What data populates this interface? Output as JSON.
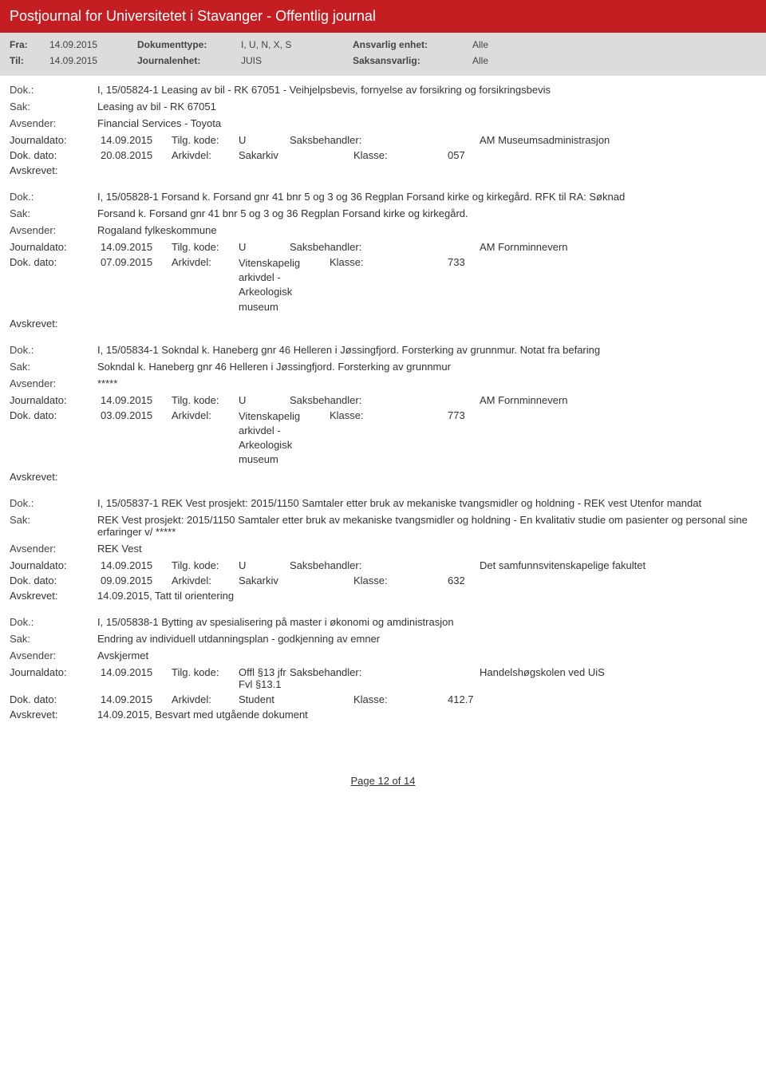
{
  "page": {
    "title": "Postjournal for Universitetet i Stavanger - Offentlig journal",
    "footer": "Page 12 of 14"
  },
  "header": {
    "fra_label": "Fra:",
    "fra_value": "14.09.2015",
    "til_label": "Til:",
    "til_value": "14.09.2015",
    "doktype_label": "Dokumenttype:",
    "doktype_value": "I, U, N, X, S",
    "journalenhet_label": "Journalenhet:",
    "journalenhet_value": "JUIS",
    "ansvarlig_label": "Ansvarlig enhet:",
    "ansvarlig_value": "Alle",
    "saksansvarlig_label": "Saksansvarlig:",
    "saksansvarlig_value": "Alle"
  },
  "labels": {
    "dok": "Dok.:",
    "sak": "Sak:",
    "avsender": "Avsender:",
    "journaldato": "Journaldato:",
    "dokdato": "Dok. dato:",
    "tilgkode": "Tilg. kode:",
    "arkivdel": "Arkivdel:",
    "saksbehandler": "Saksbehandler:",
    "klasse": "Klasse:",
    "avskrevet": "Avskrevet:"
  },
  "entries": [
    {
      "dok": "I, 15/05824-1 Leasing av bil - RK 67051 - Veihjelpsbevis, fornyelse av forsikring og forsikringsbevis",
      "sak": "Leasing av bil - RK 67051",
      "avsender": "Financial Services - Toyota",
      "journaldato": "14.09.2015",
      "tilgkode": "U",
      "saksbehandler": "AM Museumsadministrasjon",
      "dokdato": "20.08.2015",
      "arkivdel": "Sakarkiv",
      "klasse": "057",
      "avskrevet": ""
    },
    {
      "dok": "I, 15/05828-1 Forsand k. Forsand gnr 41 bnr 5 og 3 og 36 Regplan Forsand kirke og kirkegård. RFK til RA: Søknad",
      "sak": "Forsand k. Forsand gnr 41 bnr 5 og 3 og 36 Regplan Forsand kirke og kirkegård.",
      "avsender": "Rogaland fylkeskommune",
      "journaldato": "14.09.2015",
      "tilgkode": "U",
      "saksbehandler": "AM Fornminnevern",
      "dokdato": "07.09.2015",
      "arkivdel": "Vitenskapelig arkivdel - Arkeologisk museum",
      "klasse": "733",
      "avskrevet": ""
    },
    {
      "dok": "I, 15/05834-1 Sokndal k. Haneberg gnr 46 Helleren i Jøssingfjord. Forsterking av grunnmur. Notat fra befaring",
      "sak": "Sokndal k. Haneberg gnr 46 Helleren i Jøssingfjord. Forsterking av grunnmur",
      "avsender": "*****",
      "journaldato": "14.09.2015",
      "tilgkode": "U",
      "saksbehandler": "AM Fornminnevern",
      "dokdato": "03.09.2015",
      "arkivdel": "Vitenskapelig arkivdel - Arkeologisk museum",
      "klasse": "773",
      "avskrevet": ""
    },
    {
      "dok": "I, 15/05837-1 REK Vest prosjekt: 2015/1150 Samtaler etter bruk av mekaniske tvangsmidler og holdning -  REK vest Utenfor mandat",
      "sak": "REK Vest prosjekt: 2015/1150 Samtaler etter bruk av mekaniske tvangsmidler og holdning - En kvalitativ studie om pasienter og personal sine erfaringer v/ *****",
      "avsender": "REK Vest",
      "journaldato": "14.09.2015",
      "tilgkode": "U",
      "saksbehandler": "Det samfunnsvitenskapelige fakultet",
      "dokdato": "09.09.2015",
      "arkivdel": "Sakarkiv",
      "klasse": "632",
      "avskrevet": "14.09.2015, Tatt til orientering"
    },
    {
      "dok": "I, 15/05838-1 Bytting av spesialisering på master i økonomi og amdinistrasjon",
      "sak": "Endring av individuell utdanningsplan - godkjenning av emner",
      "avsender": "Avskjermet",
      "journaldato": "14.09.2015",
      "tilgkode": "Offl §13 jfr Fvl §13.1",
      "saksbehandler": "Handelshøgskolen ved UiS",
      "dokdato": "14.09.2015",
      "arkivdel": "Student",
      "klasse": "412.7",
      "avskrevet": "14.09.2015, Besvart med utgående dokument"
    }
  ]
}
